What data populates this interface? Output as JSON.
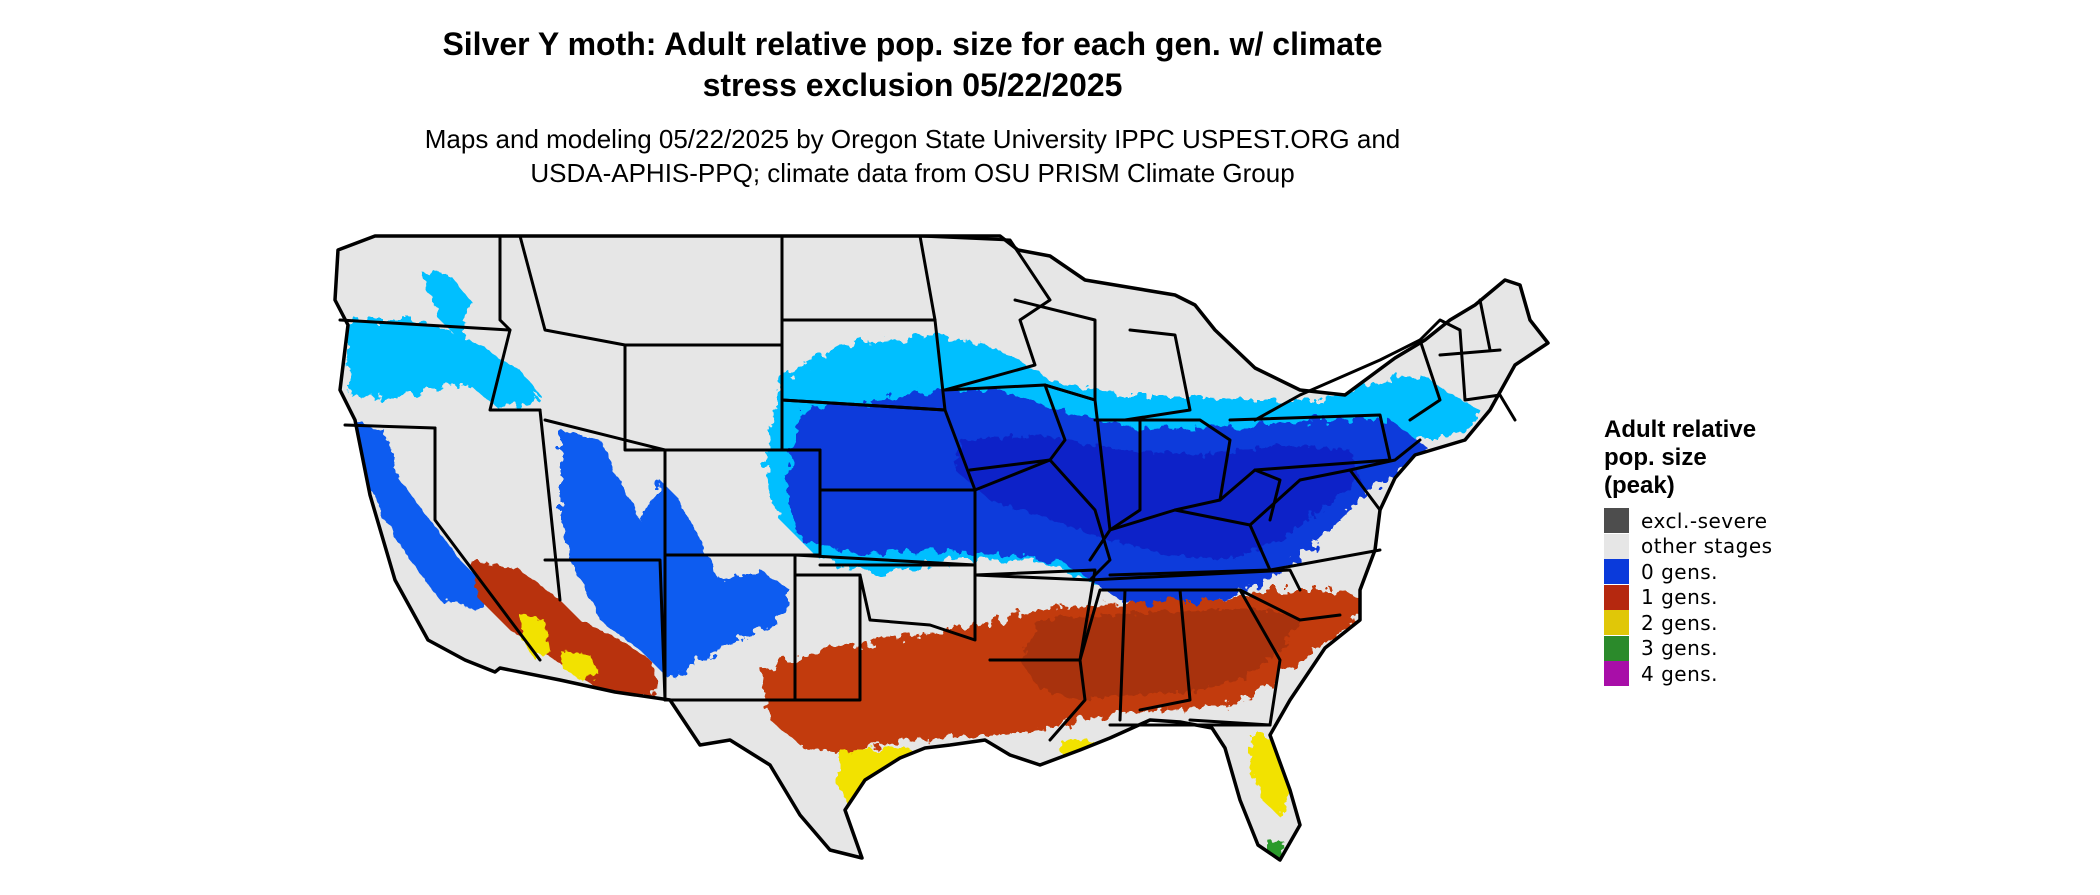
{
  "title": "Silver Y moth: Adult relative pop. size for each gen. w/ climate stress exclusion 05/22/2025",
  "title_lines": [
    "Silver Y moth: Adult relative pop. size for each gen. w/ climate",
    "stress exclusion 05/22/2025"
  ],
  "subtitle_lines": [
    "Maps and modeling 05/22/2025 by Oregon State University IPPC USPEST.ORG and",
    "USDA-APHIS-PPQ; climate data from OSU PRISM Climate Group"
  ],
  "legend": {
    "title_lines": [
      "Adult relative",
      "pop. size",
      "(peak)"
    ],
    "items": [
      {
        "label": "excl.-severe",
        "color": "#4d4d4d"
      },
      {
        "label": "other stages",
        "color": "#e6e6e6"
      },
      {
        "label": "0 gens.",
        "color": "#0a3adb"
      },
      {
        "label": "1 gens.",
        "color": "#b5280f"
      },
      {
        "label": "2 gens.",
        "color": "#e0c708"
      },
      {
        "label": "3 gens.",
        "color": "#2b8a2b"
      },
      {
        "label": "4 gens.",
        "color": "#a80ea8"
      }
    ]
  },
  "map_colors": {
    "land": "#e6e6e6",
    "light_blue": "#00bfff",
    "mid_blue": "#0a5cf0",
    "dark_blue": "#0a2ad6",
    "red": "#c8380a",
    "dark_red": "#a02408",
    "yellow": "#f5e600",
    "green": "#2b9a2b",
    "border": "#000000"
  }
}
